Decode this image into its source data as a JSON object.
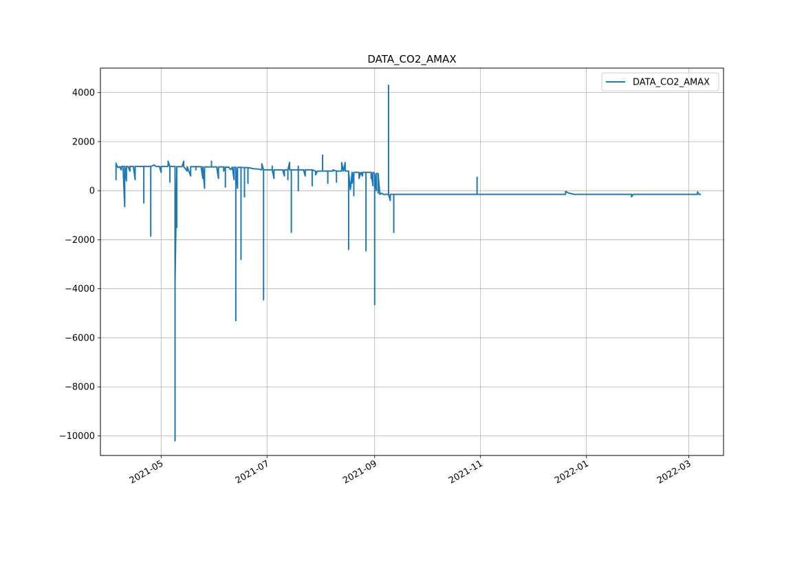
{
  "chart_data": {
    "type": "line",
    "title": "DATA_CO2_AMAX",
    "xlabel": "",
    "ylabel": "",
    "x_ticks": [
      "2021-05",
      "2021-07",
      "2021-09",
      "2021-11",
      "2022-01",
      "2022-03"
    ],
    "y_ticks": [
      4000,
      2000,
      0,
      -2000,
      -4000,
      -6000,
      -8000,
      -10000
    ],
    "xlim": [
      "2021-03-27",
      "2022-03-21"
    ],
    "ylim": [
      -10800,
      5000
    ],
    "grid": true,
    "legend_position": "top-right",
    "series": [
      {
        "name": "DATA_CO2_AMAX",
        "color": "#1f77b4",
        "points": [
          [
            "2021-04-05",
            1150
          ],
          [
            "2021-04-05",
            450
          ],
          [
            "2021-04-05",
            1100
          ],
          [
            "2021-04-06",
            950
          ],
          [
            "2021-04-07",
            980
          ],
          [
            "2021-04-08",
            850
          ],
          [
            "2021-04-08",
            980
          ],
          [
            "2021-04-09",
            1000
          ],
          [
            "2021-04-10",
            -650
          ],
          [
            "2021-04-10",
            1000
          ],
          [
            "2021-04-11",
            400
          ],
          [
            "2021-04-11",
            990
          ],
          [
            "2021-04-12",
            980
          ],
          [
            "2021-04-13",
            800
          ],
          [
            "2021-04-13",
            990
          ],
          [
            "2021-04-15",
            990
          ],
          [
            "2021-04-16",
            450
          ],
          [
            "2021-04-16",
            990
          ],
          [
            "2021-04-19",
            990
          ],
          [
            "2021-04-21",
            990
          ],
          [
            "2021-04-21",
            -500
          ],
          [
            "2021-04-21",
            990
          ],
          [
            "2021-04-25",
            990
          ],
          [
            "2021-04-25",
            -1850
          ],
          [
            "2021-04-25",
            990
          ],
          [
            "2021-04-27",
            1050
          ],
          [
            "2021-04-28",
            990
          ],
          [
            "2021-04-30",
            990
          ],
          [
            "2021-05-01",
            750
          ],
          [
            "2021-05-01",
            990
          ],
          [
            "2021-05-05",
            990
          ],
          [
            "2021-05-05",
            1200
          ],
          [
            "2021-05-06",
            990
          ],
          [
            "2021-05-06",
            350
          ],
          [
            "2021-05-06",
            990
          ],
          [
            "2021-05-09",
            990
          ],
          [
            "2021-05-09",
            -10200
          ],
          [
            "2021-05-09",
            -3800
          ],
          [
            "2021-05-10",
            980
          ],
          [
            "2021-05-10",
            -1500
          ],
          [
            "2021-05-10",
            980
          ],
          [
            "2021-05-13",
            980
          ],
          [
            "2021-05-14",
            1200
          ],
          [
            "2021-05-14",
            980
          ],
          [
            "2021-05-16",
            800
          ],
          [
            "2021-05-16",
            980
          ],
          [
            "2021-05-18",
            600
          ],
          [
            "2021-05-18",
            980
          ],
          [
            "2021-05-21",
            980
          ],
          [
            "2021-05-21",
            850
          ],
          [
            "2021-05-21",
            980
          ],
          [
            "2021-05-24",
            980
          ],
          [
            "2021-05-25",
            500
          ],
          [
            "2021-05-25",
            980
          ],
          [
            "2021-05-26",
            100
          ],
          [
            "2021-05-26",
            970
          ],
          [
            "2021-05-30",
            970
          ],
          [
            "2021-05-30",
            1200
          ],
          [
            "2021-05-30",
            970
          ],
          [
            "2021-06-02",
            970
          ],
          [
            "2021-06-03",
            500
          ],
          [
            "2021-06-03",
            970
          ],
          [
            "2021-06-06",
            970
          ],
          [
            "2021-06-06",
            800
          ],
          [
            "2021-06-07",
            970
          ],
          [
            "2021-06-07",
            150
          ],
          [
            "2021-06-07",
            960
          ],
          [
            "2021-06-09",
            960
          ],
          [
            "2021-06-10",
            860
          ],
          [
            "2021-06-11",
            960
          ],
          [
            "2021-06-12",
            450
          ],
          [
            "2021-06-12",
            960
          ],
          [
            "2021-06-13",
            950
          ],
          [
            "2021-06-13",
            -5300
          ],
          [
            "2021-06-13",
            950
          ],
          [
            "2021-06-14",
            100
          ],
          [
            "2021-06-14",
            950
          ],
          [
            "2021-06-16",
            950
          ],
          [
            "2021-06-16",
            -2800
          ],
          [
            "2021-06-16",
            950
          ],
          [
            "2021-06-18",
            940
          ],
          [
            "2021-06-18",
            -250
          ],
          [
            "2021-06-18",
            940
          ],
          [
            "2021-06-20",
            940
          ],
          [
            "2021-06-20",
            300
          ],
          [
            "2021-06-20",
            940
          ],
          [
            "2021-06-23",
            900
          ],
          [
            "2021-06-26",
            880
          ],
          [
            "2021-06-28",
            850
          ],
          [
            "2021-06-28",
            1100
          ],
          [
            "2021-06-29",
            850
          ],
          [
            "2021-06-29",
            -4450
          ],
          [
            "2021-06-29",
            850
          ],
          [
            "2021-07-04",
            850
          ],
          [
            "2021-07-04",
            1000
          ],
          [
            "2021-07-04",
            850
          ],
          [
            "2021-07-05",
            500
          ],
          [
            "2021-07-05",
            850
          ],
          [
            "2021-07-10",
            850
          ],
          [
            "2021-07-11",
            600
          ],
          [
            "2021-07-11",
            850
          ],
          [
            "2021-07-13",
            850
          ],
          [
            "2021-07-13",
            450
          ],
          [
            "2021-07-13",
            850
          ],
          [
            "2021-07-14",
            1150
          ],
          [
            "2021-07-14",
            850
          ],
          [
            "2021-07-15",
            850
          ],
          [
            "2021-07-15",
            -1700
          ],
          [
            "2021-07-15",
            850
          ],
          [
            "2021-07-19",
            850
          ],
          [
            "2021-07-19",
            1000
          ],
          [
            "2021-07-19",
            0
          ],
          [
            "2021-07-19",
            850
          ],
          [
            "2021-07-22",
            850
          ],
          [
            "2021-07-23",
            600
          ],
          [
            "2021-07-23",
            850
          ],
          [
            "2021-07-27",
            850
          ],
          [
            "2021-07-27",
            200
          ],
          [
            "2021-07-27",
            850
          ],
          [
            "2021-07-29",
            800
          ],
          [
            "2021-07-29",
            650
          ],
          [
            "2021-07-30",
            800
          ],
          [
            "2021-08-02",
            800
          ],
          [
            "2021-08-02",
            1450
          ],
          [
            "2021-08-02",
            800
          ],
          [
            "2021-08-05",
            800
          ],
          [
            "2021-08-05",
            300
          ],
          [
            "2021-08-05",
            800
          ],
          [
            "2021-08-08",
            800
          ],
          [
            "2021-08-08",
            850
          ],
          [
            "2021-08-10",
            800
          ],
          [
            "2021-08-10",
            350
          ],
          [
            "2021-08-10",
            800
          ],
          [
            "2021-08-13",
            800
          ],
          [
            "2021-08-13",
            1150
          ],
          [
            "2021-08-14",
            800
          ],
          [
            "2021-08-15",
            1150
          ],
          [
            "2021-08-15",
            800
          ],
          [
            "2021-08-17",
            800
          ],
          [
            "2021-08-17",
            650
          ],
          [
            "2021-08-17",
            -2400
          ],
          [
            "2021-08-17",
            750
          ],
          [
            "2021-08-18",
            50
          ],
          [
            "2021-08-19",
            750
          ],
          [
            "2021-08-19",
            300
          ],
          [
            "2021-08-20",
            750
          ],
          [
            "2021-08-20",
            -200
          ],
          [
            "2021-08-20",
            750
          ],
          [
            "2021-08-23",
            750
          ],
          [
            "2021-08-23",
            500
          ],
          [
            "2021-08-24",
            750
          ],
          [
            "2021-08-25",
            600
          ],
          [
            "2021-08-25",
            750
          ],
          [
            "2021-08-27",
            750
          ],
          [
            "2021-08-27",
            -2450
          ],
          [
            "2021-08-27",
            750
          ],
          [
            "2021-08-30",
            750
          ],
          [
            "2021-08-30",
            500
          ],
          [
            "2021-08-30",
            750
          ],
          [
            "2021-08-31",
            200
          ],
          [
            "2021-08-31",
            750
          ],
          [
            "2021-09-01",
            700
          ],
          [
            "2021-09-01",
            -4650
          ],
          [
            "2021-09-01",
            700
          ],
          [
            "2021-09-02",
            0
          ],
          [
            "2021-09-02",
            700
          ],
          [
            "2021-09-03",
            700
          ],
          [
            "2021-09-03",
            -100
          ],
          [
            "2021-09-03",
            700
          ],
          [
            "2021-09-04",
            -150
          ],
          [
            "2021-09-05",
            -100
          ],
          [
            "2021-09-06",
            -150
          ],
          [
            "2021-09-09",
            -150
          ],
          [
            "2021-09-09",
            4300
          ],
          [
            "2021-09-09",
            -150
          ],
          [
            "2021-09-10",
            -400
          ],
          [
            "2021-09-10",
            -150
          ],
          [
            "2021-09-12",
            -150
          ],
          [
            "2021-09-12",
            -1700
          ],
          [
            "2021-09-12",
            -150
          ],
          [
            "2021-10-01",
            -150
          ],
          [
            "2021-10-30",
            -150
          ],
          [
            "2021-10-30",
            550
          ],
          [
            "2021-10-30",
            -150
          ],
          [
            "2021-11-30",
            -150
          ],
          [
            "2021-12-20",
            -150
          ],
          [
            "2021-12-20",
            -30
          ],
          [
            "2021-12-22",
            -100
          ],
          [
            "2021-12-25",
            -150
          ],
          [
            "2022-01-27",
            -150
          ],
          [
            "2022-01-27",
            -250
          ],
          [
            "2022-01-28",
            -150
          ],
          [
            "2022-03-06",
            -150
          ],
          [
            "2022-03-06",
            -50
          ],
          [
            "2022-03-07",
            -150
          ],
          [
            "2022-03-08",
            -150
          ]
        ]
      }
    ]
  }
}
